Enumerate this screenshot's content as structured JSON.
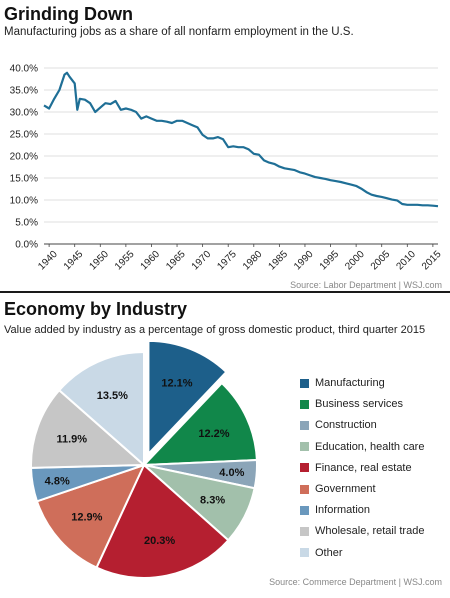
{
  "chart_data": [
    {
      "type": "line",
      "title": "Grinding Down",
      "subtitle": "Manufacturing jobs as a share of all nonfarm employment in the U.S.",
      "source": "Source: Labor Department  |  WSJ.com",
      "xlim": [
        1939,
        2016
      ],
      "ylim": [
        0,
        40
      ],
      "y_ticks": [
        "0.0%",
        "5.0%",
        "10.0%",
        "15.0%",
        "20.0%",
        "25.0%",
        "30.0%",
        "35.0%",
        "40.0%"
      ],
      "y_tick_values": [
        0,
        5,
        10,
        15,
        20,
        25,
        30,
        35,
        40
      ],
      "x_ticks": [
        "1940",
        "1945",
        "1950",
        "1955",
        "1960",
        "1965",
        "1970",
        "1975",
        "1980",
        "1985",
        "1990",
        "1995",
        "2000",
        "2005",
        "2010",
        "2015"
      ],
      "x_tick_values": [
        1940,
        1945,
        1950,
        1955,
        1960,
        1965,
        1970,
        1975,
        1980,
        1985,
        1990,
        1995,
        2000,
        2005,
        2010,
        2015
      ],
      "grid": true,
      "color": "#1f6f96",
      "x": [
        1939,
        1940,
        1941,
        1942,
        1943,
        1943.5,
        1944,
        1945,
        1945.5,
        1946,
        1947,
        1948,
        1949,
        1950,
        1951,
        1952,
        1953,
        1954,
        1955,
        1956,
        1957,
        1958,
        1959,
        1960,
        1961,
        1962,
        1963,
        1964,
        1965,
        1966,
        1967,
        1968,
        1969,
        1970,
        1971,
        1972,
        1973,
        1974,
        1975,
        1976,
        1977,
        1978,
        1979,
        1980,
        1981,
        1982,
        1983,
        1984,
        1985,
        1986,
        1987,
        1988,
        1989,
        1990,
        1991,
        1992,
        1993,
        1994,
        1995,
        1996,
        1997,
        1998,
        1999,
        2000,
        2001,
        2002,
        2003,
        2004,
        2005,
        2006,
        2007,
        2008,
        2009,
        2010,
        2011,
        2012,
        2013,
        2014,
        2015,
        2016
      ],
      "y": [
        31.5,
        30.8,
        33.0,
        35.0,
        38.5,
        38.9,
        38.0,
        36.5,
        30.5,
        33.0,
        32.8,
        32.0,
        30.0,
        31.0,
        32.0,
        31.8,
        32.5,
        30.5,
        30.8,
        30.5,
        30.0,
        28.5,
        29.0,
        28.5,
        28.0,
        28.0,
        27.8,
        27.5,
        28.0,
        28.0,
        27.5,
        27.0,
        26.5,
        24.8,
        24.0,
        24.0,
        24.3,
        23.8,
        22.0,
        22.2,
        22.0,
        22.0,
        21.5,
        20.5,
        20.3,
        19.0,
        18.5,
        18.2,
        17.6,
        17.2,
        17.0,
        16.8,
        16.3,
        16.0,
        15.6,
        15.2,
        15.0,
        14.8,
        14.5,
        14.3,
        14.1,
        13.8,
        13.5,
        13.2,
        12.6,
        11.8,
        11.2,
        10.9,
        10.7,
        10.4,
        10.1,
        9.9,
        9.1,
        8.9,
        8.9,
        8.9,
        8.8,
        8.8,
        8.7,
        8.6
      ]
    },
    {
      "type": "pie",
      "title": "Economy by Industry",
      "subtitle": "Value added by industry as a percentage of gross domestic product, third quarter 2015",
      "source": "Source: Commerce Department  |  WSJ.com",
      "exploded_slice": "Manufacturing",
      "slices": [
        {
          "name": "Manufacturing",
          "value": 12.1,
          "label": "12.1%",
          "color": "#1d5f8a"
        },
        {
          "name": "Business services",
          "value": 12.2,
          "label": "12.2%",
          "color": "#11874a"
        },
        {
          "name": "Construction",
          "value": 4.0,
          "label": "4.0%",
          "color": "#8ba5b8"
        },
        {
          "name": "Education, health care",
          "value": 8.3,
          "label": "8.3%",
          "color": "#a2c0ab"
        },
        {
          "name": "Finance, real estate",
          "value": 20.3,
          "label": "20.3%",
          "color": "#b51f30"
        },
        {
          "name": "Government",
          "value": 12.9,
          "label": "12.9%",
          "color": "#cf6e5a"
        },
        {
          "name": "Information",
          "value": 4.8,
          "label": "4.8%",
          "color": "#6a98bd"
        },
        {
          "name": "Wholesale, retail trade",
          "value": 11.9,
          "label": "11.9%",
          "color": "#c6c6c6"
        },
        {
          "name": "Other",
          "value": 13.5,
          "label": "13.5%",
          "color": "#c9d9e6"
        }
      ]
    }
  ]
}
